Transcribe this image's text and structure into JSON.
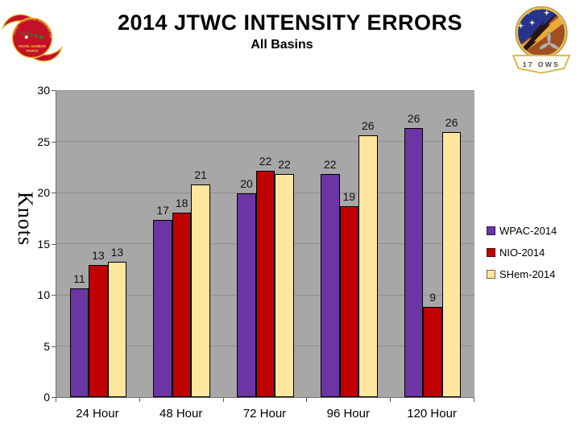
{
  "slide": {
    "title": "2014 JTWC INTENSITY ERRORS",
    "subtitle": "All Basins",
    "jtwc_logo": {
      "arc_text": "JOINT TYPHOON WARNING CENTER",
      "line1": "PEARL HARBOR",
      "line2": "HAWAII"
    },
    "ows_logo": {
      "banner_text": "17 OWS"
    }
  },
  "chart_data": {
    "type": "bar",
    "title": "2014 JTWC INTENSITY ERRORS",
    "subtitle": "All Basins",
    "categories": [
      "24 Hour",
      "48 Hour",
      "72 Hour",
      "96 Hour",
      "120 Hour"
    ],
    "series": [
      {
        "name": "WPAC-2014",
        "color": "#6B35A3",
        "values": [
          11,
          17,
          20,
          22,
          26
        ],
        "bar_heights_knots": [
          10.6,
          17.3,
          19.9,
          21.8,
          26.3
        ]
      },
      {
        "name": "NIO-2014",
        "color": "#C00000",
        "values": [
          13,
          18,
          22,
          19,
          9
        ],
        "bar_heights_knots": [
          12.9,
          18.0,
          22.1,
          18.7,
          8.8
        ]
      },
      {
        "name": "SHem-2014",
        "color": "#FFE69E",
        "values": [
          13,
          21,
          22,
          26,
          26
        ],
        "bar_heights_knots": [
          13.2,
          20.8,
          21.8,
          25.6,
          25.9
        ]
      }
    ],
    "xlabel": "",
    "ylabel": "Knots",
    "ylim": [
      0,
      30
    ],
    "yticks": [
      0,
      5,
      10,
      15,
      20,
      25,
      30
    ],
    "grid": true,
    "legend_position": "right",
    "colors": {
      "plot_background": "#A7A7A7",
      "gridline": "#8F8F8F",
      "bar_border": "#000000",
      "axis": "#6E6E6E",
      "text": "#000000"
    }
  }
}
